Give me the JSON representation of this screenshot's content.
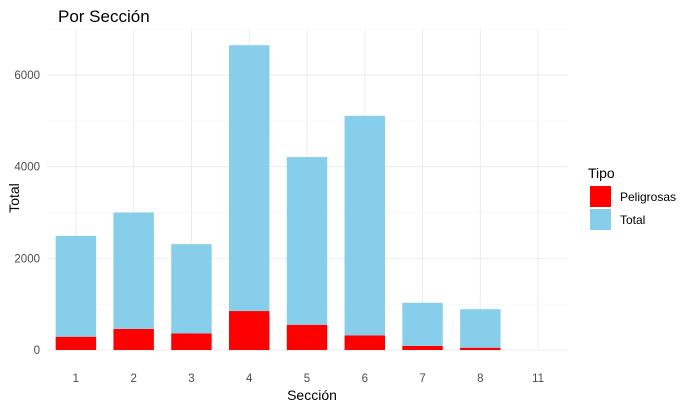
{
  "chart_data": {
    "type": "bar",
    "stacked": true,
    "title": "Por Sección",
    "xlabel": "Sección",
    "ylabel": "Total",
    "categories": [
      "1",
      "2",
      "3",
      "4",
      "5",
      "6",
      "7",
      "8",
      "11"
    ],
    "series": [
      {
        "name": "Peligrosas",
        "color": "#ff0000",
        "values": [
          290,
          460,
          360,
          850,
          550,
          320,
          90,
          50,
          0
        ]
      },
      {
        "name": "Total",
        "color": "#87ceeb",
        "values": [
          2200,
          2540,
          1950,
          5800,
          3660,
          4790,
          940,
          840,
          0
        ]
      }
    ],
    "ylim": [
      0,
      7000
    ],
    "yticks": [
      0,
      2000,
      4000,
      6000
    ],
    "grid": true,
    "legend": {
      "title": "Tipo",
      "position": "right",
      "items": [
        "Peligrosas",
        "Total"
      ]
    }
  }
}
